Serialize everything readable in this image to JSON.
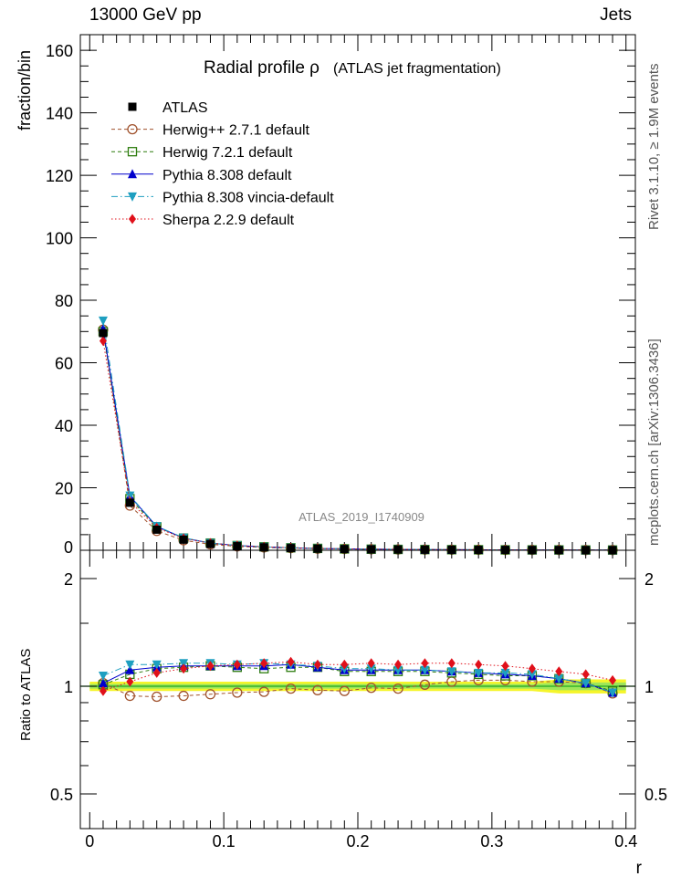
{
  "header": {
    "left": "13000 GeV pp",
    "right": "Jets"
  },
  "side_labels": {
    "rivet": "Rivet 3.1.10, ≥ 1.9M events",
    "mcplots": "mcplots.cern.ch [arXiv:1306.3436]"
  },
  "chart_data": [
    {
      "type": "scatter",
      "title": "Radial profile  ρ",
      "title_suffix": "(ATLAS jet fragmentation)",
      "watermark": "ATLAS_2019_I1740909",
      "xlabel": "r",
      "ylabel": "fraction/bin",
      "xlim": [
        -0.007,
        0.407
      ],
      "ylim": [
        0,
        165
      ],
      "yticks": [
        0,
        20,
        40,
        60,
        80,
        100,
        120,
        140,
        160
      ],
      "yticklabels": [
        "0",
        "20",
        "40",
        "60",
        "80",
        "100",
        "120",
        "140",
        "160"
      ],
      "legend_position": "top-left",
      "x": [
        0.01,
        0.03,
        0.05,
        0.07,
        0.09,
        0.11,
        0.13,
        0.15,
        0.17,
        0.19,
        0.21,
        0.23,
        0.25,
        0.27,
        0.29,
        0.31,
        0.33,
        0.35,
        0.37,
        0.39
      ],
      "series": [
        {
          "name": "ATLAS",
          "color": "#000000",
          "marker": "square-filled",
          "line": "none",
          "values": [
            69.5,
            15.2,
            6.6,
            3.4,
            2.0,
            1.3,
            0.95,
            0.7,
            0.52,
            0.4,
            0.31,
            0.25,
            0.2,
            0.17,
            0.14,
            0.12,
            0.1,
            0.09,
            0.08,
            0.07
          ]
        },
        {
          "name": "Herwig++ 2.7.1 default",
          "color": "#a0522d",
          "marker": "circle-open",
          "line": "dashed",
          "values": [
            70.6,
            14.3,
            6.2,
            3.2,
            1.9,
            1.25,
            0.92,
            0.7,
            0.51,
            0.39,
            0.31,
            0.25,
            0.2,
            0.18,
            0.15,
            0.12,
            0.1,
            0.09,
            0.08,
            0.07
          ]
        },
        {
          "name": "Herwig 7.2.1 default",
          "color": "#2e7d0f",
          "marker": "square-open",
          "line": "dashed",
          "values": [
            70.0,
            16.5,
            7.5,
            3.9,
            2.3,
            1.5,
            1.1,
            0.8,
            0.6,
            0.45,
            0.35,
            0.28,
            0.23,
            0.19,
            0.16,
            0.13,
            0.11,
            0.1,
            0.08,
            0.07
          ]
        },
        {
          "name": "Pythia 8.308 default",
          "color": "#0000cc",
          "marker": "triangle-up",
          "line": "solid",
          "values": [
            70.9,
            17.3,
            7.6,
            3.9,
            2.3,
            1.5,
            1.1,
            0.81,
            0.6,
            0.45,
            0.35,
            0.28,
            0.23,
            0.19,
            0.16,
            0.13,
            0.11,
            0.1,
            0.08,
            0.07
          ]
        },
        {
          "name": "Pythia 8.308 vincia-default",
          "color": "#1e9fc0",
          "marker": "triangle-down",
          "line": "dashdot",
          "values": [
            73.5,
            17.5,
            7.7,
            4.0,
            2.3,
            1.5,
            1.1,
            0.81,
            0.6,
            0.45,
            0.35,
            0.28,
            0.23,
            0.19,
            0.16,
            0.13,
            0.11,
            0.1,
            0.08,
            0.07
          ]
        },
        {
          "name": "Sherpa 2.2.9 default",
          "color": "#e0101a",
          "marker": "diamond",
          "line": "dotted",
          "values": [
            67.0,
            15.6,
            7.2,
            3.8,
            2.3,
            1.5,
            1.1,
            0.82,
            0.61,
            0.46,
            0.36,
            0.29,
            0.24,
            0.2,
            0.17,
            0.14,
            0.12,
            0.1,
            0.09,
            0.07
          ]
        }
      ]
    },
    {
      "type": "scatter",
      "xlabel": "r",
      "ylabel": "Ratio to ATLAS",
      "xlim": [
        -0.007,
        0.407
      ],
      "ylim": [
        0.4,
        2.4
      ],
      "log_y": true,
      "yticks": [
        0.5,
        1,
        2
      ],
      "yticklabels": [
        "0.5",
        "1",
        "2"
      ],
      "xticks": [
        0,
        0.1,
        0.2,
        0.3,
        0.4
      ],
      "xticklabels": [
        "0",
        "0.1",
        "0.2",
        "0.3",
        "0.4"
      ],
      "band_colors": {
        "outer": "#f5f52a",
        "inner": "#9ee65a",
        "line": "#22aa22"
      },
      "x": [
        0.01,
        0.03,
        0.05,
        0.07,
        0.09,
        0.11,
        0.13,
        0.15,
        0.17,
        0.19,
        0.21,
        0.23,
        0.25,
        0.27,
        0.29,
        0.31,
        0.33,
        0.35,
        0.37,
        0.39
      ],
      "series": [
        {
          "name": "Herwig++ 2.7.1 default",
          "color": "#a0522d",
          "marker": "circle-open",
          "line": "dashed",
          "values": [
            1.02,
            0.94,
            0.935,
            0.94,
            0.95,
            0.96,
            0.965,
            0.985,
            0.975,
            0.97,
            0.99,
            0.985,
            1.01,
            1.03,
            1.04,
            1.04,
            1.03,
            1.03,
            1.02,
            0.955
          ]
        },
        {
          "name": "Herwig 7.2.1 default",
          "color": "#2e7d0f",
          "marker": "square-open",
          "line": "dashed",
          "values": [
            1.01,
            1.08,
            1.12,
            1.13,
            1.14,
            1.13,
            1.12,
            1.13,
            1.13,
            1.1,
            1.1,
            1.1,
            1.1,
            1.09,
            1.08,
            1.07,
            1.07,
            1.05,
            1.02,
            0.97
          ]
        },
        {
          "name": "Pythia 8.308 default",
          "color": "#0000cc",
          "marker": "triangle-up",
          "line": "solid",
          "values": [
            1.02,
            1.11,
            1.13,
            1.14,
            1.14,
            1.14,
            1.14,
            1.15,
            1.13,
            1.11,
            1.11,
            1.11,
            1.11,
            1.1,
            1.09,
            1.08,
            1.07,
            1.05,
            1.02,
            0.96
          ]
        },
        {
          "name": "Pythia 8.308 vincia-default",
          "color": "#1e9fc0",
          "marker": "triangle-down",
          "line": "dashdot",
          "values": [
            1.07,
            1.15,
            1.15,
            1.16,
            1.16,
            1.15,
            1.16,
            1.15,
            1.14,
            1.12,
            1.12,
            1.11,
            1.11,
            1.1,
            1.09,
            1.09,
            1.08,
            1.05,
            1.02,
            0.96
          ]
        },
        {
          "name": "Sherpa 2.2.9 default",
          "color": "#e0101a",
          "marker": "diamond",
          "line": "dotted",
          "values": [
            0.97,
            1.03,
            1.09,
            1.12,
            1.14,
            1.15,
            1.16,
            1.17,
            1.15,
            1.15,
            1.16,
            1.15,
            1.16,
            1.16,
            1.15,
            1.14,
            1.12,
            1.1,
            1.08,
            1.04
          ]
        }
      ]
    }
  ]
}
